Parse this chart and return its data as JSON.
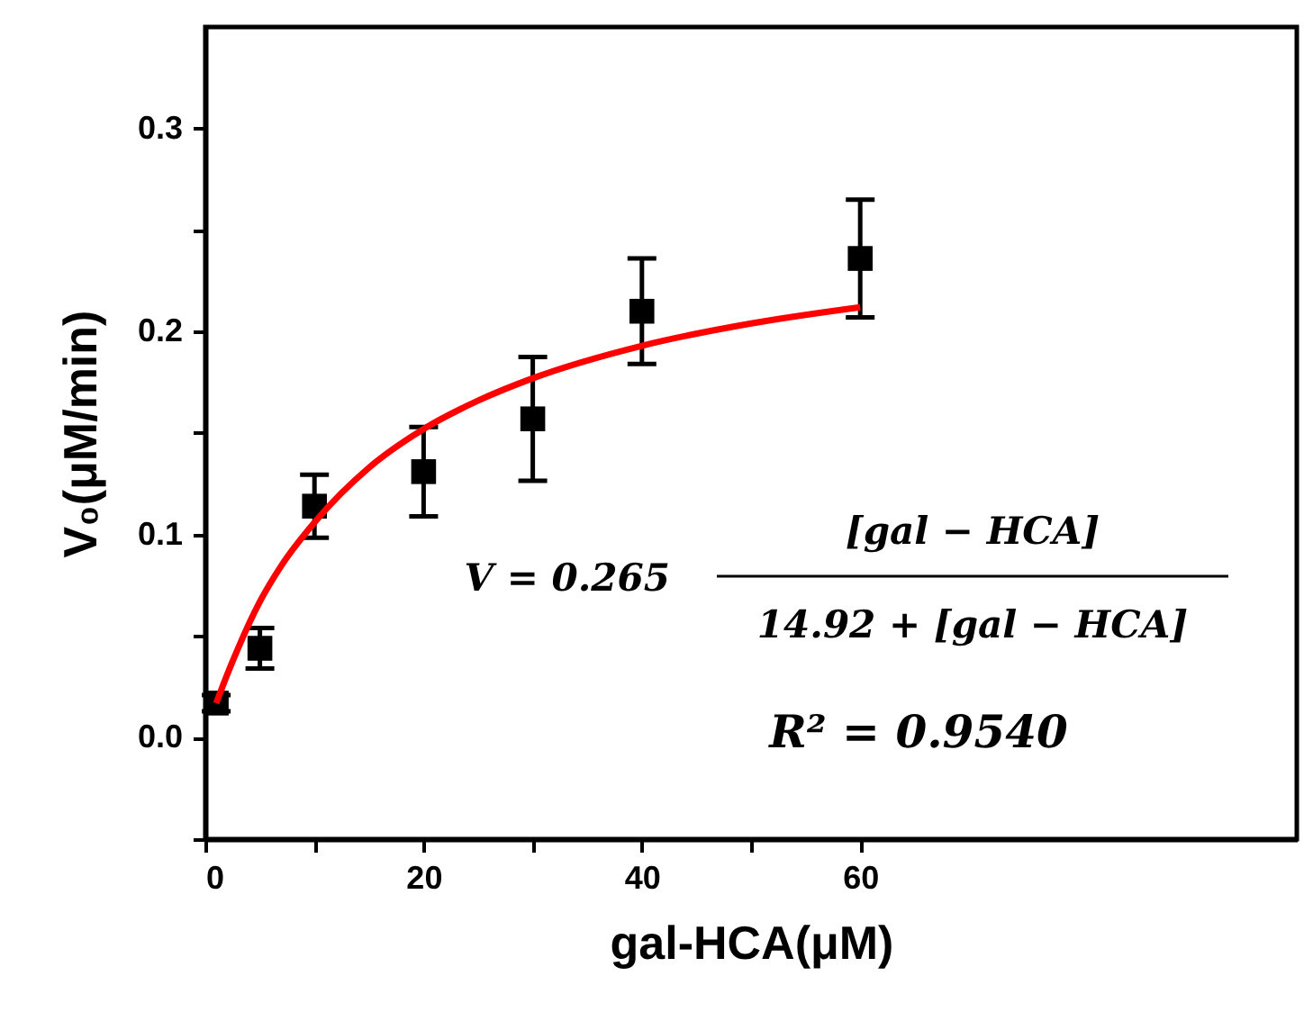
{
  "chart_data": {
    "type": "scatter",
    "xlabel": "gal-HCA(μM)",
    "ylabel": "V₀(μM/min)",
    "xlim": [
      0,
      100
    ],
    "ylim": [
      -0.05,
      0.35
    ],
    "xticks": [
      0,
      {
        "value": 10,
        "label": null
      },
      20,
      {
        "value": 30,
        "label": null
      },
      40,
      {
        "value": 50,
        "label": null
      },
      60
    ],
    "yticks": [
      {
        "value": -0.05,
        "label": null
      },
      {
        "value": 0,
        "label": "0.0"
      },
      {
        "value": 0.05,
        "label": null
      },
      0.1,
      {
        "value": 0.15,
        "label": null
      },
      0.2,
      {
        "value": 0.25,
        "label": null
      },
      0.3
    ],
    "grid": false,
    "series": [
      {
        "color": "#000000",
        "marker": "square",
        "x": [
          1,
          5,
          10,
          20,
          30,
          40,
          60
        ],
        "values": [
          0.017,
          0.044,
          0.114,
          0.131,
          0.157,
          0.21,
          0.236
        ],
        "errors": [
          0.004,
          0.01,
          0.0155,
          0.022,
          0.0305,
          0.026,
          0.029
        ]
      },
      {
        "type": "line",
        "color": "#ff0000",
        "marker": "none",
        "line_style": "solid",
        "x": [
          1,
          2,
          3,
          5,
          7,
          10,
          15,
          20,
          25,
          30,
          40,
          50,
          60
        ],
        "values": [
          0.017,
          0.031,
          0.044,
          0.067,
          0.085,
          0.106,
          0.133,
          0.152,
          0.166,
          0.177,
          0.193,
          0.204,
          0.212
        ]
      }
    ],
    "annotations": [
      "V = 0.265",
      "[gal − HCA]",
      "14.92 + [gal − HCA]",
      "R² = 0.9540"
    ]
  }
}
